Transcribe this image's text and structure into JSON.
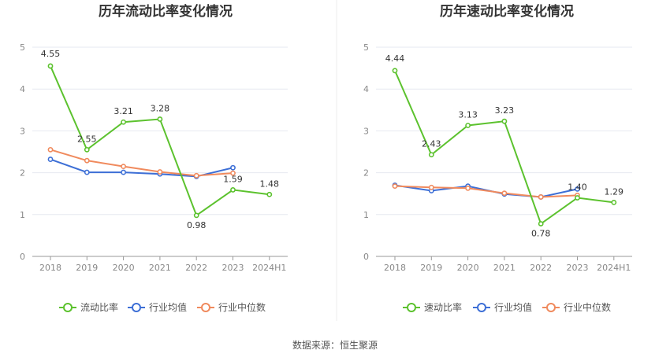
{
  "source_note": "数据来源：恒生聚源",
  "chart_data": [
    {
      "type": "line",
      "title": "历年流动比率变化情况",
      "categories": [
        "2018",
        "2019",
        "2020",
        "2021",
        "2022",
        "2023",
        "2024H1"
      ],
      "ylim": [
        0,
        5
      ],
      "yticks": [
        "0",
        "1",
        "2",
        "3",
        "4",
        "5"
      ],
      "grid": true,
      "legend_position": "bottom",
      "series": [
        {
          "name": "流动比率",
          "color": "#5cc22e",
          "labeled": true,
          "values": [
            4.55,
            2.55,
            3.21,
            3.28,
            0.98,
            1.59,
            1.48
          ],
          "labels": [
            "4.55",
            "2.55",
            "3.21",
            "3.28",
            "0.98",
            "1.59",
            "1.48"
          ]
        },
        {
          "name": "行业均值",
          "color": "#3d6fd6",
          "labeled": false,
          "values": [
            2.32,
            2.01,
            2.01,
            1.97,
            1.91,
            2.12,
            null
          ]
        },
        {
          "name": "行业中位数",
          "color": "#f08a5d",
          "labeled": false,
          "values": [
            2.55,
            2.29,
            2.15,
            2.02,
            1.93,
            1.99,
            null
          ]
        }
      ]
    },
    {
      "type": "line",
      "title": "历年速动比率变化情况",
      "categories": [
        "2018",
        "2019",
        "2020",
        "2021",
        "2022",
        "2023",
        "2024H1"
      ],
      "ylim": [
        0,
        5
      ],
      "yticks": [
        "0",
        "1",
        "2",
        "3",
        "4",
        "5"
      ],
      "grid": true,
      "legend_position": "bottom",
      "series": [
        {
          "name": "速动比率",
          "color": "#5cc22e",
          "labeled": true,
          "values": [
            4.44,
            2.43,
            3.13,
            3.23,
            0.78,
            1.4,
            1.29
          ],
          "labels": [
            "4.44",
            "2.43",
            "3.13",
            "3.23",
            "0.78",
            "1.40",
            "1.29"
          ]
        },
        {
          "name": "行业均值",
          "color": "#3d6fd6",
          "labeled": false,
          "values": [
            1.7,
            1.57,
            1.68,
            1.49,
            1.42,
            1.61,
            null
          ]
        },
        {
          "name": "行业中位数",
          "color": "#f08a5d",
          "labeled": false,
          "values": [
            1.68,
            1.65,
            1.63,
            1.51,
            1.42,
            1.46,
            null
          ]
        }
      ]
    }
  ]
}
